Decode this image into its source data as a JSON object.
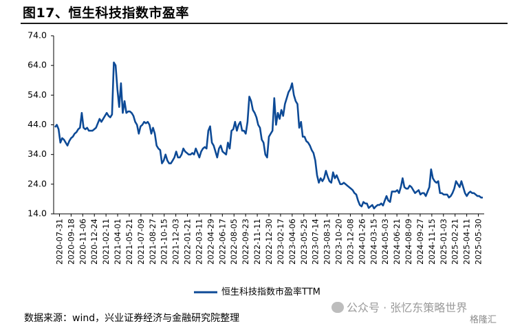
{
  "figure": {
    "title": "图17、恒生科技指数市盈率",
    "source": "数据来源：wind，兴业证券经济与金融研究院整理",
    "watermark": "公众号 · 张忆东策略世界",
    "corner_logo": "格隆汇"
  },
  "colors": {
    "series_line": "#0d4a96",
    "axis": "#000000",
    "text": "#000000"
  },
  "chart_data": {
    "type": "line",
    "title": "",
    "xlabel": "",
    "ylabel": "",
    "ylim": [
      14.0,
      74.0
    ],
    "yticks": [
      "14.0",
      "24.0",
      "34.0",
      "44.0",
      "54.0",
      "64.0",
      "74.0"
    ],
    "grid": false,
    "legend_position": "bottom-center",
    "x_categories": [
      "2020-07-31",
      "2020-09-18",
      "2020-11-06",
      "2020-12-24",
      "2021-02-11",
      "2021-04-01",
      "2021-05-21",
      "2021-07-09",
      "2021-08-27",
      "2021-10-15",
      "2021-12-03",
      "2022-01-21",
      "2022-03-11",
      "2022-04-29",
      "2022-06-17",
      "2022-08-05",
      "2022-09-23",
      "2022-11-11",
      "2022-12-30",
      "2023-02-17",
      "2023-04-06",
      "2023-05-25",
      "2023-07-14",
      "2023-08-31",
      "2023-10-20",
      "2023-12-08",
      "2024-01-26",
      "2024-03-15",
      "2024-05-03",
      "2024-06-21",
      "2024-08-09",
      "2024-09-27",
      "2024-11-15",
      "2025-01-03",
      "2025-02-21",
      "2025-04-11",
      "2025-05-30"
    ],
    "series": [
      {
        "name": "恒生科技指数市盈率TTM",
        "x_start": "2020-07-31",
        "x_end": "2025-06-13",
        "values": [
          43.2,
          44.0,
          42.5,
          38.0,
          39.5,
          39.0,
          38.0,
          37.0,
          38.5,
          39.5,
          40.0,
          41.0,
          41.5,
          42.5,
          43.0,
          48.0,
          43.0,
          42.5,
          43.0,
          42.0,
          42.0,
          42.0,
          42.5,
          43.0,
          44.5,
          46.0,
          45.0,
          46.0,
          47.0,
          48.0,
          47.0,
          46.5,
          47.5,
          65.0,
          64.0,
          56.0,
          50.0,
          58.0,
          48.0,
          52.0,
          48.0,
          48.5,
          48.5,
          48.0,
          47.0,
          45.0,
          44.0,
          41.0,
          43.5,
          44.0,
          45.0,
          44.5,
          45.0,
          44.0,
          41.0,
          43.0,
          41.0,
          37.0,
          36.0,
          35.5,
          31.0,
          32.0,
          34.0,
          32.0,
          31.0,
          31.0,
          32.0,
          33.0,
          35.0,
          33.0,
          33.0,
          34.0,
          36.0,
          35.0,
          34.5,
          34.0,
          34.0,
          34.5,
          34.0,
          36.0,
          34.5,
          33.0,
          35.0,
          36.0,
          36.5,
          36.0,
          42.0,
          43.5,
          38.0,
          37.0,
          35.0,
          33.0,
          36.0,
          37.0,
          35.0,
          34.5,
          34.0,
          38.0,
          36.0,
          42.0,
          42.5,
          45.0,
          42.0,
          44.0,
          45.0,
          42.0,
          42.0,
          41.0,
          45.0,
          53.5,
          52.0,
          49.0,
          48.0,
          46.5,
          44.0,
          43.0,
          39.0,
          38.0,
          34.0,
          33.0,
          40.0,
          41.0,
          42.0,
          53.0,
          44.0,
          48.0,
          46.0,
          49.0,
          47.0,
          51.0,
          53.0,
          55.0,
          56.0,
          58.0,
          54.0,
          52.0,
          51.0,
          43.0,
          45.0,
          40.0,
          40.0,
          38.5,
          38.0,
          37.0,
          35.5,
          34.5,
          32.0,
          27.0,
          24.5,
          26.0,
          25.0,
          26.0,
          28.5,
          26.5,
          25.0,
          24.5,
          28.0,
          26.0,
          27.0,
          25.5,
          24.0,
          24.0,
          24.5,
          24.0,
          23.5,
          23.0,
          22.5,
          22.0,
          21.0,
          20.5,
          18.5,
          17.0,
          16.5,
          18.0,
          17.5,
          17.5,
          16.0,
          16.5,
          17.0,
          15.8,
          16.5,
          17.0,
          17.0,
          17.5,
          16.8,
          18.5,
          20.0,
          18.5,
          18.0,
          21.5,
          21.5,
          21.5,
          22.0,
          21.0,
          23.0,
          26.0,
          23.0,
          22.5,
          22.5,
          23.5,
          23.0,
          22.0,
          21.0,
          21.5,
          22.0,
          20.5,
          21.0,
          21.0,
          20.0,
          21.5,
          23.0,
          29.0,
          26.0,
          25.0,
          24.5,
          25.0,
          21.0,
          21.0,
          20.5,
          20.5,
          20.5,
          19.5,
          20.0,
          21.0,
          22.5,
          25.0,
          24.0,
          23.0,
          25.0,
          23.0,
          21.0,
          20.0,
          21.0,
          21.5,
          21.0,
          21.0,
          20.5,
          20.0,
          20.0,
          19.5,
          19.5
        ]
      }
    ]
  }
}
